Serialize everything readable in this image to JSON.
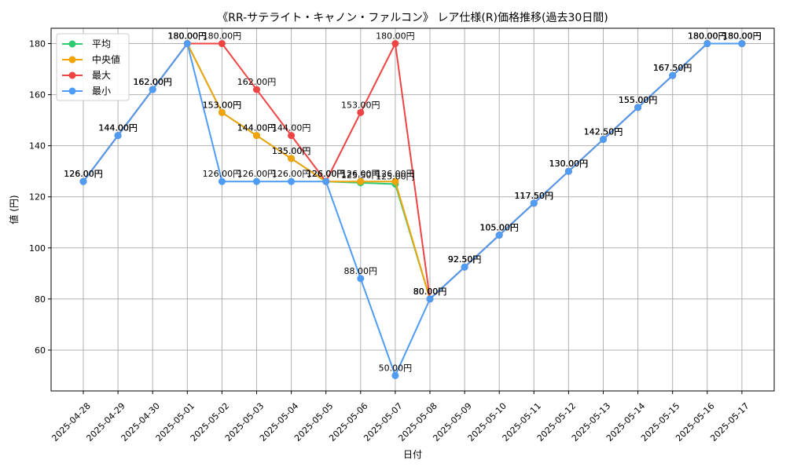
{
  "chart_data": {
    "type": "line",
    "title": "《RR-サテライト・キャノン・ファルコン》 レア仕様(R)価格推移(過去30日間)",
    "xlabel": "日付",
    "ylabel": "値 (円)",
    "ylim": [
      44,
      186
    ],
    "yticks": [
      60,
      80,
      100,
      120,
      140,
      160,
      180
    ],
    "grid": true,
    "legend_position": "top-left",
    "label_suffix": "円",
    "categories": [
      "2025-04-28",
      "2025-04-29",
      "2025-04-30",
      "2025-05-01",
      "2025-05-02",
      "2025-05-03",
      "2025-05-04",
      "2025-05-05",
      "2025-05-06",
      "2025-05-07",
      "2025-05-08",
      "2025-05-09",
      "2025-05-10",
      "2025-05-11",
      "2025-05-12",
      "2025-05-13",
      "2025-05-14",
      "2025-05-15",
      "2025-05-16",
      "2025-05-17"
    ],
    "series": [
      {
        "name": "平均",
        "color": "#2ecc71",
        "values": [
          126,
          144,
          162,
          180,
          153,
          144,
          135,
          126,
          125.5,
          125,
          80,
          92.5,
          105,
          117.5,
          130,
          142.5,
          155,
          167.5,
          180,
          180
        ]
      },
      {
        "name": "中央値",
        "color": "#f0a30a",
        "values": [
          126,
          144,
          162,
          180,
          153,
          144,
          135,
          126,
          126,
          126,
          80,
          92.5,
          105,
          117.5,
          130,
          142.5,
          155,
          167.5,
          180,
          180
        ]
      },
      {
        "name": "最大",
        "color": "#ef4444",
        "values": [
          126,
          144,
          162,
          180,
          180,
          162,
          144,
          126,
          153,
          180,
          80,
          92.5,
          105,
          117.5,
          130,
          142.5,
          155,
          167.5,
          180,
          180
        ]
      },
      {
        "name": "最小",
        "color": "#4e9cf5",
        "values": [
          126,
          144,
          162,
          180,
          126,
          126,
          126,
          126,
          88,
          50,
          80,
          92.5,
          105,
          117.5,
          130,
          142.5,
          155,
          167.5,
          180,
          180
        ]
      }
    ]
  }
}
